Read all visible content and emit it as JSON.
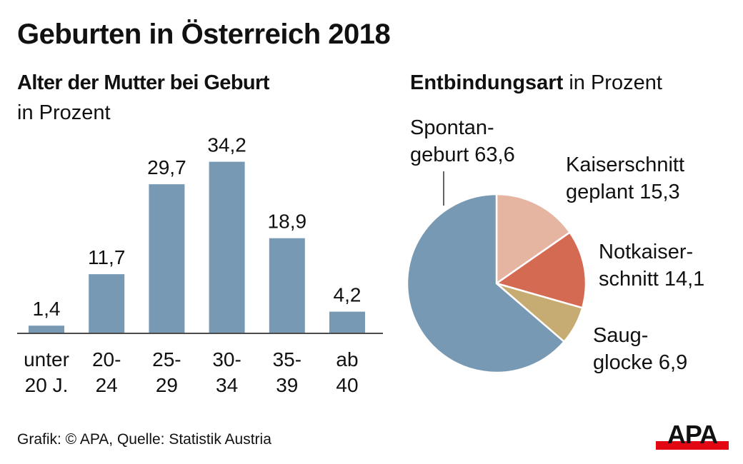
{
  "title": "Geburten in Österreich 2018",
  "source": "Grafik: © APA, Quelle: Statistik Austria",
  "logo": "APA",
  "colors": {
    "bar": "#7899b3",
    "spontan": "#7899b3",
    "kaiser_geplant": "#e6b5a2",
    "notkaiser": "#d56a53",
    "saugglocke": "#c6ac72",
    "logo_red": "#e30613",
    "text": "#111111"
  },
  "chart_data": [
    {
      "type": "bar",
      "title": "Alter der Mutter bei Geburt",
      "subtitle": "in Prozent",
      "categories": [
        [
          "unter",
          "20 J."
        ],
        [
          "20-",
          "24"
        ],
        [
          "25-",
          "29"
        ],
        [
          "30-",
          "34"
        ],
        [
          "35-",
          "39"
        ],
        [
          "ab",
          "40"
        ]
      ],
      "values": [
        1.4,
        11.7,
        29.7,
        34.2,
        18.9,
        4.2
      ],
      "value_labels": [
        "1,4",
        "11,7",
        "29,7",
        "34,2",
        "18,9",
        "4,2"
      ],
      "xlabel": "",
      "ylabel": "",
      "grid": false
    },
    {
      "type": "pie",
      "title": "Entbindungsart",
      "subtitle": "in Prozent",
      "slices": [
        {
          "name": "Kaiserschnitt geplant",
          "label_lines": [
            "Kaiserschnitt",
            "geplant 15,3"
          ],
          "value": 15.3,
          "color_key": "kaiser_geplant"
        },
        {
          "name": "Notkaiserschnitt",
          "label_lines": [
            "Notkaiser-",
            "schnitt 14,1"
          ],
          "value": 14.1,
          "color_key": "notkaiser"
        },
        {
          "name": "Saugglocke",
          "label_lines": [
            "Saug-",
            "glocke 6,9"
          ],
          "value": 6.9,
          "color_key": "saugglocke"
        },
        {
          "name": "Spontangeburt",
          "label_lines": [
            "Spontan-",
            "geburt 63,6"
          ],
          "value": 63.6,
          "color_key": "spontan"
        }
      ]
    }
  ]
}
